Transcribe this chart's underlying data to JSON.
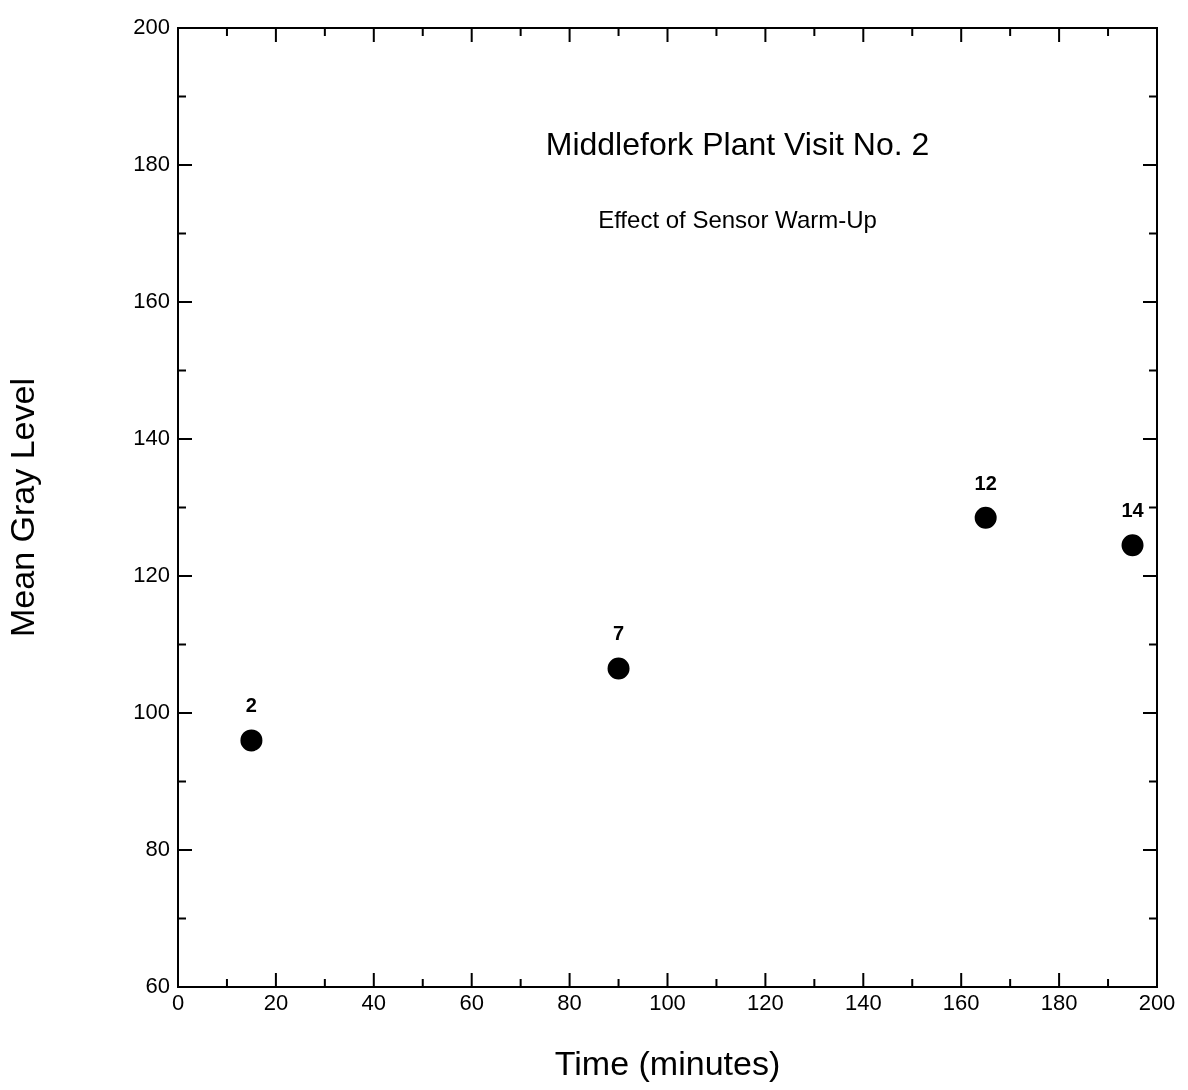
{
  "chart_data": {
    "type": "scatter",
    "title": "Middlefork Plant Visit No. 2",
    "subtitle": "Effect of Sensor Warm-Up",
    "xlabel": "Time (minutes)",
    "ylabel": "Mean Gray Level",
    "x": [
      15,
      90,
      165,
      195
    ],
    "series": [
      {
        "color": "#000000",
        "values": [
          96,
          106.5,
          128.5,
          124.5
        ]
      }
    ],
    "xlim": [
      0,
      200
    ],
    "xticks": [
      0,
      20,
      40,
      60,
      80,
      100,
      120,
      140,
      160,
      180,
      200
    ],
    "ylim": [
      60,
      200
    ],
    "yticks": [
      60,
      80,
      100,
      120,
      140,
      160,
      180,
      200
    ],
    "grid": false,
    "legend": false,
    "marker": "circle",
    "annotations": [
      {
        "text": "2",
        "x": 15,
        "y": 96
      },
      {
        "text": "7",
        "x": 90,
        "y": 106.5
      },
      {
        "text": "12",
        "x": 165,
        "y": 128.5
      },
      {
        "text": "14",
        "x": 195,
        "y": 124.5
      }
    ]
  }
}
